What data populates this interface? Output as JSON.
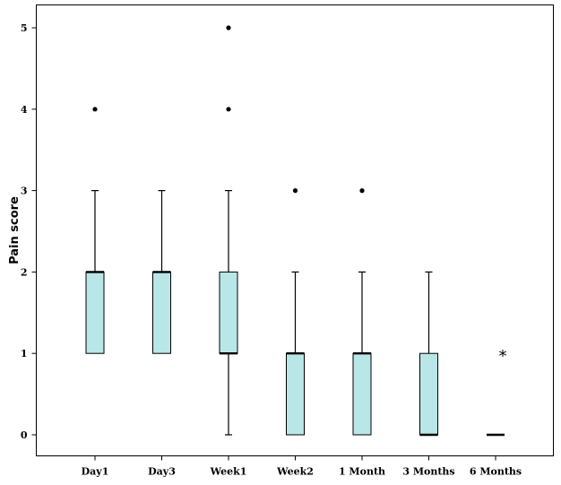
{
  "chart_data": {
    "type": "boxplot",
    "title": "",
    "xlabel": "",
    "ylabel": "Pain score",
    "ylim": [
      -0.27,
      5.27
    ],
    "yticks": [
      0,
      1,
      2,
      3,
      4,
      5
    ],
    "grid": false,
    "box_fill": "#b9e6e6",
    "categories": [
      "Day1",
      "Day3",
      "Week1",
      "Week2",
      "1 Month",
      "3 Months",
      "6 Months"
    ],
    "boxes": [
      {
        "category": "Day1",
        "whisker_low": 1,
        "q1": 1,
        "median": 2,
        "q3": 2,
        "whisker_high": 3,
        "outliers": [
          4
        ],
        "outlier_marker": "dot"
      },
      {
        "category": "Day3",
        "whisker_low": 1,
        "q1": 1,
        "median": 2,
        "q3": 2,
        "whisker_high": 3,
        "outliers": [],
        "outlier_marker": "dot"
      },
      {
        "category": "Week1",
        "whisker_low": 0,
        "q1": 1,
        "median": 1,
        "q3": 2,
        "whisker_high": 3,
        "outliers": [
          4,
          5
        ],
        "outlier_marker": "dot"
      },
      {
        "category": "Week2",
        "whisker_low": 0,
        "q1": 0,
        "median": 1,
        "q3": 1,
        "whisker_high": 2,
        "outliers": [
          3
        ],
        "outlier_marker": "dot"
      },
      {
        "category": "1 Month",
        "whisker_low": 0,
        "q1": 0,
        "median": 1,
        "q3": 1,
        "whisker_high": 2,
        "outliers": [
          3
        ],
        "outlier_marker": "dot"
      },
      {
        "category": "3 Months",
        "whisker_low": 0,
        "q1": 0,
        "median": 0,
        "q3": 1,
        "whisker_high": 2,
        "outliers": [],
        "outlier_marker": "dot"
      },
      {
        "category": "6 Months",
        "whisker_low": 0,
        "q1": 0,
        "median": 0,
        "q3": 0,
        "whisker_high": 0,
        "outliers": [
          1
        ],
        "outlier_marker": "star"
      }
    ]
  }
}
